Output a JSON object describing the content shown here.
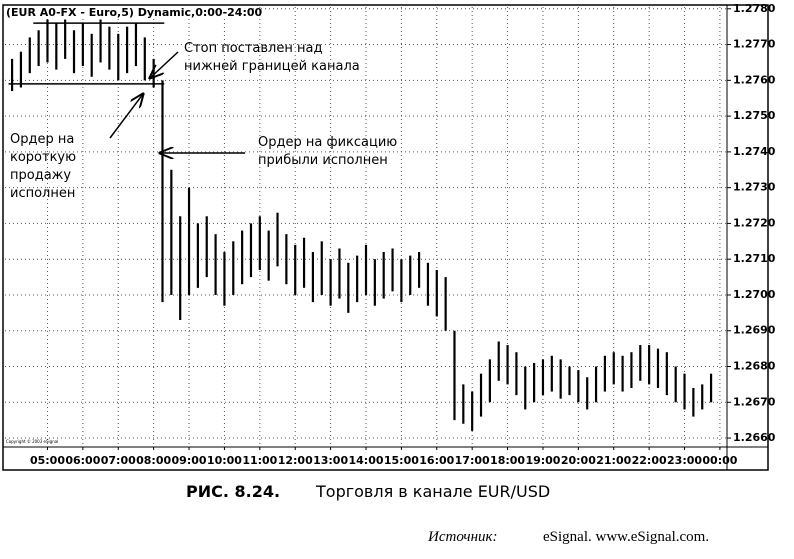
{
  "chart_data": {
    "type": "hilo",
    "title": "(EUR A0-FX - Euro,5) Dynamic,0:00-24:00",
    "copyright": "Copyright © 2003 eSignal",
    "x": [
      4.0,
      4.25,
      4.5,
      4.75,
      5.0,
      5.25,
      5.5,
      5.75,
      6.0,
      6.25,
      6.5,
      6.75,
      7.0,
      7.25,
      7.5,
      7.75,
      8.0,
      8.25,
      8.5,
      8.75,
      9.0,
      9.25,
      9.5,
      9.75,
      10.0,
      10.25,
      10.5,
      10.75,
      11.0,
      11.25,
      11.5,
      11.75,
      12.0,
      12.25,
      12.5,
      12.75,
      13.0,
      13.25,
      13.5,
      13.75,
      14.0,
      14.25,
      14.5,
      14.75,
      15.0,
      15.25,
      15.5,
      15.75,
      16.0,
      16.25,
      16.5,
      16.75,
      17.0,
      17.25,
      17.5,
      17.75,
      18.0,
      18.25,
      18.5,
      18.75,
      19.0,
      19.25,
      19.5,
      19.75,
      20.0,
      20.25,
      20.5,
      20.75,
      21.0,
      21.25,
      21.5,
      21.75,
      22.0,
      22.25,
      22.5,
      22.75,
      23.0,
      23.25,
      23.5,
      23.75
    ],
    "low": [
      1.2757,
      1.2758,
      1.2762,
      1.2764,
      1.2765,
      1.2763,
      1.2766,
      1.2762,
      1.2764,
      1.2761,
      1.2765,
      1.2763,
      1.276,
      1.2762,
      1.2764,
      1.276,
      1.2758,
      1.2698,
      1.27,
      1.2693,
      1.27,
      1.2702,
      1.2705,
      1.27,
      1.2697,
      1.27,
      1.2703,
      1.2705,
      1.2707,
      1.2704,
      1.2708,
      1.2703,
      1.27,
      1.2702,
      1.2698,
      1.27,
      1.2697,
      1.2699,
      1.2695,
      1.2698,
      1.27,
      1.2697,
      1.2699,
      1.2701,
      1.2698,
      1.27,
      1.2702,
      1.2697,
      1.2694,
      1.269,
      1.2665,
      1.2664,
      1.2662,
      1.2666,
      1.267,
      1.2676,
      1.2675,
      1.2672,
      1.2668,
      1.267,
      1.2672,
      1.2673,
      1.2671,
      1.2672,
      1.267,
      1.2668,
      1.267,
      1.2673,
      1.2675,
      1.2673,
      1.2674,
      1.2676,
      1.2675,
      1.2674,
      1.2672,
      1.267,
      1.2668,
      1.2666,
      1.2668,
      1.267
    ],
    "high": [
      1.2766,
      1.2768,
      1.2772,
      1.2774,
      1.2777,
      1.2776,
      1.2777,
      1.2774,
      1.2776,
      1.2773,
      1.2777,
      1.2775,
      1.2773,
      1.2775,
      1.2776,
      1.2772,
      1.2766,
      1.276,
      1.2735,
      1.2722,
      1.273,
      1.272,
      1.2722,
      1.2717,
      1.2712,
      1.2715,
      1.2718,
      1.272,
      1.2722,
      1.2718,
      1.2723,
      1.2717,
      1.2714,
      1.2716,
      1.2712,
      1.2715,
      1.271,
      1.2713,
      1.2709,
      1.2711,
      1.2714,
      1.271,
      1.2712,
      1.2713,
      1.271,
      1.2711,
      1.2712,
      1.2709,
      1.2707,
      1.2705,
      1.269,
      1.2675,
      1.2673,
      1.2678,
      1.2682,
      1.2687,
      1.2686,
      1.2684,
      1.268,
      1.2681,
      1.2682,
      1.2683,
      1.2682,
      1.268,
      1.2679,
      1.2677,
      1.268,
      1.2683,
      1.2684,
      1.2683,
      1.2684,
      1.2686,
      1.2686,
      1.2685,
      1.2684,
      1.268,
      1.2678,
      1.2674,
      1.2675,
      1.2678
    ],
    "color": "#000000",
    "channel": {
      "upper": 1.2776,
      "lower": 1.2759,
      "upper_x": [
        4.6,
        8.3
      ],
      "lower_x": [
        3.9,
        8.3
      ]
    },
    "xlim": [
      3.8,
      24.2
    ],
    "ylim": [
      1.26575,
      1.27805
    ],
    "xticks": [
      {
        "value": 5,
        "label": "05:00"
      },
      {
        "value": 6,
        "label": "06:00"
      },
      {
        "value": 7,
        "label": "07:00"
      },
      {
        "value": 8,
        "label": "08:00"
      },
      {
        "value": 9,
        "label": "09:00"
      },
      {
        "value": 10,
        "label": "10:00"
      },
      {
        "value": 11,
        "label": "11:00"
      },
      {
        "value": 12,
        "label": "12:00"
      },
      {
        "value": 13,
        "label": "13:00"
      },
      {
        "value": 14,
        "label": "14:00"
      },
      {
        "value": 15,
        "label": "15:00"
      },
      {
        "value": 16,
        "label": "16:00"
      },
      {
        "value": 17,
        "label": "17:00"
      },
      {
        "value": 18,
        "label": "18:00"
      },
      {
        "value": 19,
        "label": "19:00"
      },
      {
        "value": 20,
        "label": "20:00"
      },
      {
        "value": 21,
        "label": "21:00"
      },
      {
        "value": 22,
        "label": "22:00"
      },
      {
        "value": 23,
        "label": "23:00"
      },
      {
        "value": 24,
        "label": "00:00"
      }
    ],
    "yticks": [
      {
        "value": 1.278,
        "label": "1.2780"
      },
      {
        "value": 1.277,
        "label": "1.2770"
      },
      {
        "value": 1.276,
        "label": "1.2760"
      },
      {
        "value": 1.275,
        "label": "1.2750"
      },
      {
        "value": 1.274,
        "label": "1.2740"
      },
      {
        "value": 1.273,
        "label": "1.2730"
      },
      {
        "value": 1.272,
        "label": "1.2720"
      },
      {
        "value": 1.271,
        "label": "1.2710"
      },
      {
        "value": 1.27,
        "label": "1.2700"
      },
      {
        "value": 1.269,
        "label": "1.2690"
      },
      {
        "value": 1.268,
        "label": "1.2680"
      },
      {
        "value": 1.267,
        "label": "1.2670"
      },
      {
        "value": 1.266,
        "label": "1.2660"
      }
    ],
    "grid": true,
    "annotations": [
      {
        "lines": [
          "Стоп поставлен над",
          "нижней границей канала"
        ]
      },
      {
        "lines": [
          "Ордер на",
          "короткую",
          "продажу",
          "исполнен"
        ]
      },
      {
        "lines": [
          "Ордер на фиксацию",
          "прибыли исполнен"
        ]
      }
    ],
    "caption": {
      "number": "РИС. 8.24.",
      "text": "Торговля в канале EUR/USD"
    },
    "source": {
      "label": "Источник:",
      "text": "eSignal. www.eSignal.com."
    }
  }
}
